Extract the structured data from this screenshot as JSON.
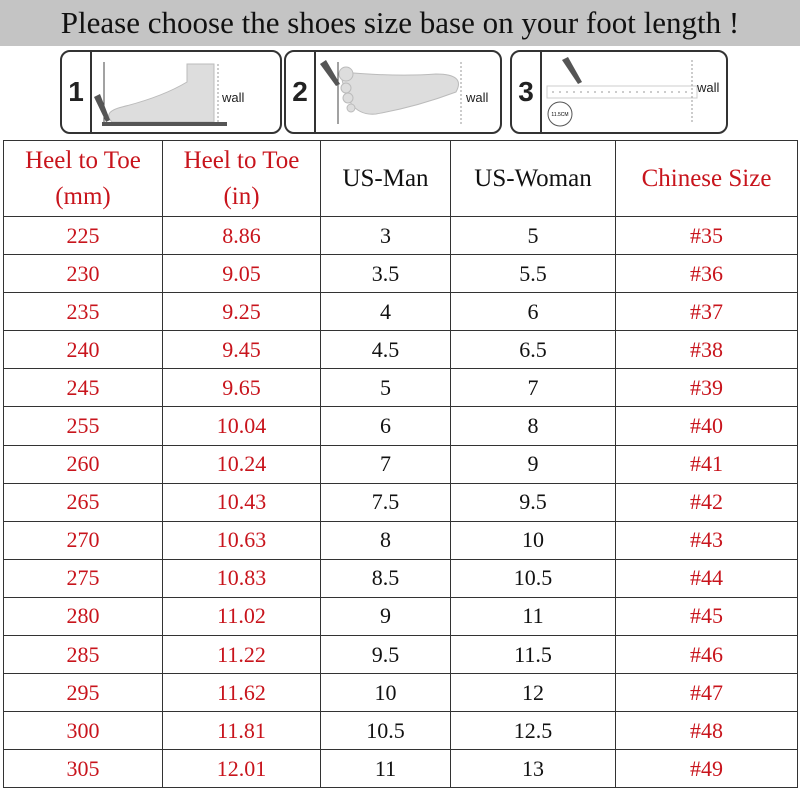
{
  "banner": {
    "text": "Please choose the shoes size base on your foot length !"
  },
  "steps": [
    {
      "number": "1",
      "wall_label": "wall",
      "icon": "foot-side-view-with-pen"
    },
    {
      "number": "2",
      "wall_label": "wall",
      "icon": "foot-top-view-with-pen"
    },
    {
      "number": "3",
      "wall_label": "wall",
      "icon": "ruler-measurement",
      "measure_label": "11.5CM"
    }
  ],
  "colors": {
    "red_text": "#c8141c",
    "banner_bg": "#c4c4c4"
  },
  "table": {
    "headers": [
      {
        "line1": "Heel to Toe",
        "line2": "(mm)"
      },
      {
        "line1": "Heel to Toe",
        "line2": "(in)"
      },
      {
        "line1": "US-Man",
        "line2": ""
      },
      {
        "line1": "US-Woman",
        "line2": ""
      },
      {
        "line1": "Chinese Size",
        "line2": ""
      }
    ],
    "rows": [
      [
        "225",
        "8.86",
        "3",
        "5",
        "#35"
      ],
      [
        "230",
        "9.05",
        "3.5",
        "5.5",
        "#36"
      ],
      [
        "235",
        "9.25",
        "4",
        "6",
        "#37"
      ],
      [
        "240",
        "9.45",
        "4.5",
        "6.5",
        "#38"
      ],
      [
        "245",
        "9.65",
        "5",
        "7",
        "#39"
      ],
      [
        "255",
        "10.04",
        "6",
        "8",
        "#40"
      ],
      [
        "260",
        "10.24",
        "7",
        "9",
        "#41"
      ],
      [
        "265",
        "10.43",
        "7.5",
        "9.5",
        "#42"
      ],
      [
        "270",
        "10.63",
        "8",
        "10",
        "#43"
      ],
      [
        "275",
        "10.83",
        "8.5",
        "10.5",
        "#44"
      ],
      [
        "280",
        "11.02",
        "9",
        "11",
        "#45"
      ],
      [
        "285",
        "11.22",
        "9.5",
        "11.5",
        "#46"
      ],
      [
        "295",
        "11.62",
        "10",
        "12",
        "#47"
      ],
      [
        "300",
        "11.81",
        "10.5",
        "12.5",
        "#48"
      ],
      [
        "305",
        "12.01",
        "11",
        "13",
        "#49"
      ]
    ]
  }
}
